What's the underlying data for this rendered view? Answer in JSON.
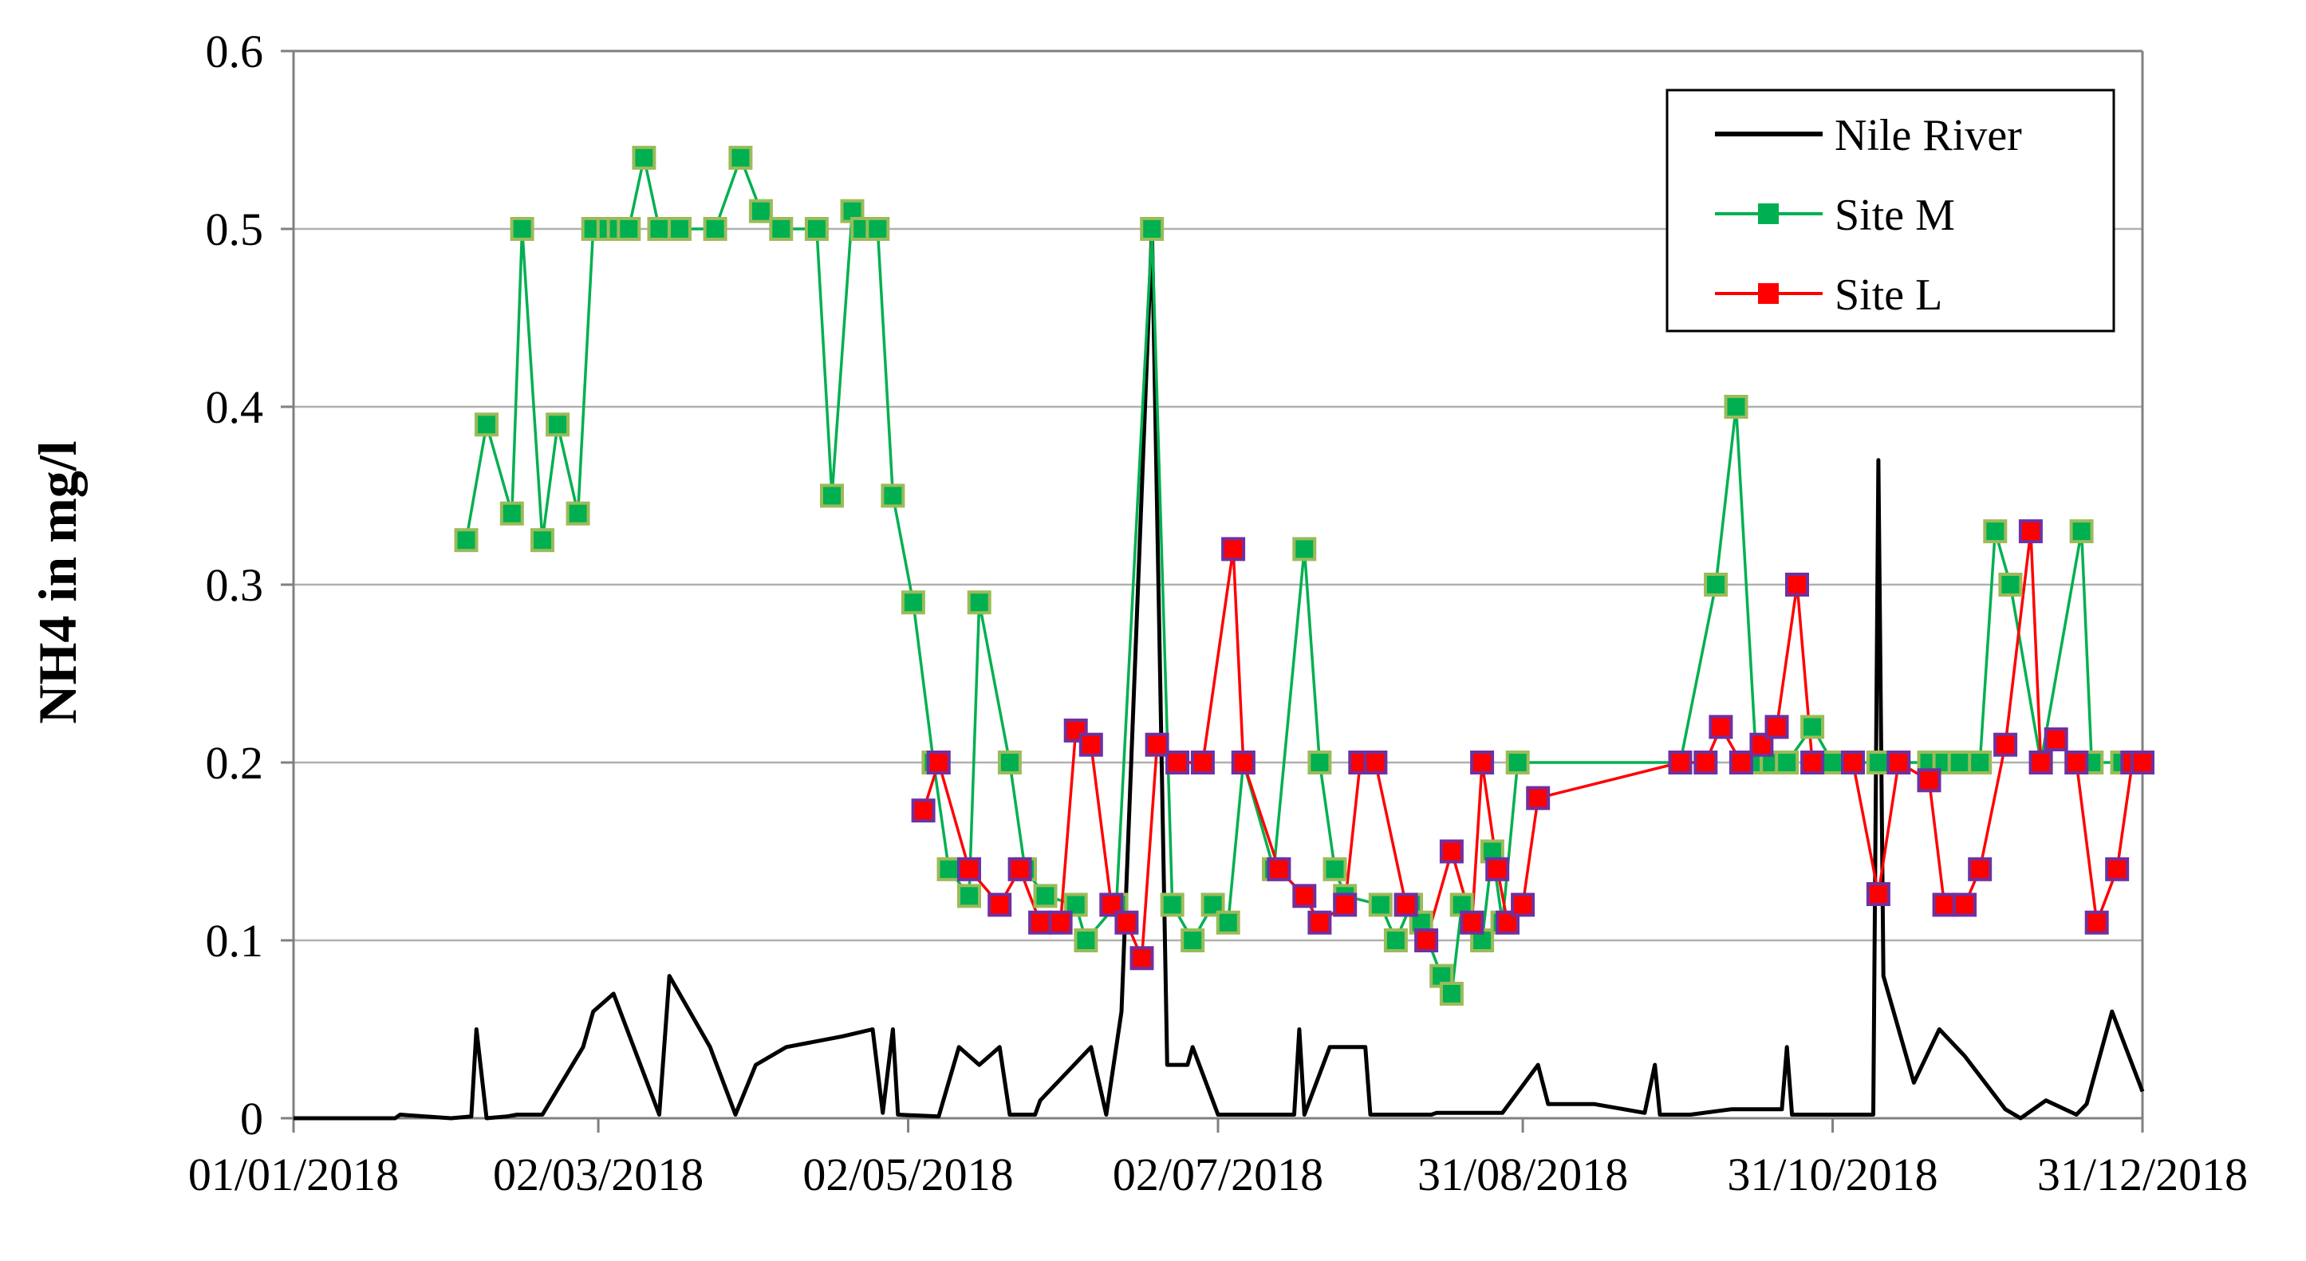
{
  "chart_data": {
    "type": "line",
    "title": "",
    "xlabel": "",
    "ylabel": "NH4  in  mg/l",
    "ylim": [
      0,
      0.6
    ],
    "yticks": [
      "0",
      "0.1",
      "0.2",
      "0.3",
      "0.4",
      "0.5",
      "0.6"
    ],
    "xlim": [
      "2018-01-01",
      "2018-12-31"
    ],
    "xtick_dates": [
      "2018-01-01",
      "2018-03-02",
      "2018-05-02",
      "2018-07-02",
      "2018-08-31",
      "2018-10-31",
      "2018-12-31"
    ],
    "xticks": [
      "01/01/2018",
      "02/03/2018",
      "02/05/2018",
      "02/07/2018",
      "31/08/2018",
      "31/10/2018",
      "31/12/2018"
    ],
    "grid": "horizontal",
    "legend_position": "top-right",
    "series": [
      {
        "name": "Nile River",
        "color": "#000000",
        "marker": "none",
        "points": [
          [
            "2018-01-01",
            0
          ],
          [
            "2018-01-21",
            0
          ],
          [
            "2018-01-22",
            0.002
          ],
          [
            "2018-02-01",
            0
          ],
          [
            "2018-02-05",
            0.001
          ],
          [
            "2018-02-06",
            0.05
          ],
          [
            "2018-02-08",
            0
          ],
          [
            "2018-02-12",
            0.001
          ],
          [
            "2018-02-14",
            0.002
          ],
          [
            "2018-02-19",
            0.002
          ],
          [
            "2018-02-27",
            0.04
          ],
          [
            "2018-03-01",
            0.06
          ],
          [
            "2018-03-05",
            0.07
          ],
          [
            "2018-03-14",
            0.002
          ],
          [
            "2018-03-16",
            0.08
          ],
          [
            "2018-03-24",
            0.04
          ],
          [
            "2018-03-29",
            0.002
          ],
          [
            "2018-04-02",
            0.03
          ],
          [
            "2018-04-08",
            0.04
          ],
          [
            "2018-04-19",
            0.046
          ],
          [
            "2018-04-25",
            0.05
          ],
          [
            "2018-04-27",
            0.003
          ],
          [
            "2018-04-29",
            0.05
          ],
          [
            "2018-04-30",
            0.002
          ],
          [
            "2018-05-08",
            0.001
          ],
          [
            "2018-05-12",
            0.04
          ],
          [
            "2018-05-16",
            0.03
          ],
          [
            "2018-05-20",
            0.04
          ],
          [
            "2018-05-22",
            0.002
          ],
          [
            "2018-05-27",
            0.002
          ],
          [
            "2018-05-28",
            0.01
          ],
          [
            "2018-06-07",
            0.04
          ],
          [
            "2018-06-10",
            0.002
          ],
          [
            "2018-06-13",
            0.06
          ],
          [
            "2018-06-19",
            0.5
          ],
          [
            "2018-06-22",
            0.03
          ],
          [
            "2018-06-26",
            0.03
          ],
          [
            "2018-06-27",
            0.04
          ],
          [
            "2018-07-02",
            0.002
          ],
          [
            "2018-07-17",
            0.002
          ],
          [
            "2018-07-18",
            0.05
          ],
          [
            "2018-07-19",
            0.002
          ],
          [
            "2018-07-24",
            0.04
          ],
          [
            "2018-07-31",
            0.04
          ],
          [
            "2018-08-01",
            0.002
          ],
          [
            "2018-08-13",
            0.002
          ],
          [
            "2018-08-14",
            0.003
          ],
          [
            "2018-08-27",
            0.003
          ],
          [
            "2018-09-03",
            0.03
          ],
          [
            "2018-09-05",
            0.008
          ],
          [
            "2018-09-14",
            0.008
          ],
          [
            "2018-09-24",
            0.003
          ],
          [
            "2018-09-26",
            0.03
          ],
          [
            "2018-09-27",
            0.002
          ],
          [
            "2018-10-03",
            0.002
          ],
          [
            "2018-10-11",
            0.005
          ],
          [
            "2018-10-21",
            0.005
          ],
          [
            "2018-10-22",
            0.04
          ],
          [
            "2018-10-23",
            0.002
          ],
          [
            "2018-11-08",
            0.002
          ],
          [
            "2018-11-09",
            0.37
          ],
          [
            "2018-11-10",
            0.08
          ],
          [
            "2018-11-16",
            0.02
          ],
          [
            "2018-11-21",
            0.05
          ],
          [
            "2018-11-26",
            0.035
          ],
          [
            "2018-12-04",
            0.005
          ],
          [
            "2018-12-07",
            0
          ],
          [
            "2018-12-12",
            0.01
          ],
          [
            "2018-12-18",
            0.002
          ],
          [
            "2018-12-20",
            0.008
          ],
          [
            "2018-12-25",
            0.06
          ],
          [
            "2018-12-31",
            0.015
          ]
        ]
      },
      {
        "name": "Site M",
        "color": "#00b050",
        "marker": "square",
        "points": [
          [
            "2018-02-04",
            0.325
          ],
          [
            "2018-02-08",
            0.39
          ],
          [
            "2018-02-13",
            0.34
          ],
          [
            "2018-02-15",
            0.5
          ],
          [
            "2018-02-19",
            0.325
          ],
          [
            "2018-02-22",
            0.39
          ],
          [
            "2018-02-26",
            0.34
          ],
          [
            "2018-03-01",
            0.5
          ],
          [
            "2018-03-04",
            0.5
          ],
          [
            "2018-03-06",
            0.5
          ],
          [
            "2018-03-08",
            0.5
          ],
          [
            "2018-03-11",
            0.54
          ],
          [
            "2018-03-14",
            0.5
          ],
          [
            "2018-03-18",
            0.5
          ],
          [
            "2018-03-25",
            0.5
          ],
          [
            "2018-03-30",
            0.54
          ],
          [
            "2018-04-03",
            0.51
          ],
          [
            "2018-04-07",
            0.5
          ],
          [
            "2018-04-14",
            0.5
          ],
          [
            "2018-04-17",
            0.35
          ],
          [
            "2018-04-21",
            0.51
          ],
          [
            "2018-04-23",
            0.5
          ],
          [
            "2018-04-26",
            0.5
          ],
          [
            "2018-04-29",
            0.35
          ],
          [
            "2018-05-03",
            0.29
          ],
          [
            "2018-05-07",
            0.2
          ],
          [
            "2018-05-10",
            0.14
          ],
          [
            "2018-05-14",
            0.125
          ],
          [
            "2018-05-16",
            0.29
          ],
          [
            "2018-05-22",
            0.2
          ],
          [
            "2018-05-25",
            0.14
          ],
          [
            "2018-05-29",
            0.125
          ],
          [
            "2018-06-04",
            0.12
          ],
          [
            "2018-06-06",
            0.1
          ],
          [
            "2018-06-12",
            0.12
          ],
          [
            "2018-06-19",
            0.5
          ],
          [
            "2018-06-23",
            0.12
          ],
          [
            "2018-06-27",
            0.1
          ],
          [
            "2018-07-01",
            0.12
          ],
          [
            "2018-07-04",
            0.11
          ],
          [
            "2018-07-07",
            0.2
          ],
          [
            "2018-07-13",
            0.14
          ],
          [
            "2018-07-19",
            0.32
          ],
          [
            "2018-07-22",
            0.2
          ],
          [
            "2018-07-25",
            0.14
          ],
          [
            "2018-07-27",
            0.125
          ],
          [
            "2018-08-03",
            0.12
          ],
          [
            "2018-08-06",
            0.1
          ],
          [
            "2018-08-09",
            0.12
          ],
          [
            "2018-08-11",
            0.11
          ],
          [
            "2018-08-15",
            0.08
          ],
          [
            "2018-08-17",
            0.07
          ],
          [
            "2018-08-19",
            0.12
          ],
          [
            "2018-08-23",
            0.1
          ],
          [
            "2018-08-25",
            0.15
          ],
          [
            "2018-08-27",
            0.11
          ],
          [
            "2018-08-30",
            0.2
          ],
          [
            "2018-10-01",
            0.2
          ],
          [
            "2018-10-08",
            0.3
          ],
          [
            "2018-10-12",
            0.4
          ],
          [
            "2018-10-16",
            0.2
          ],
          [
            "2018-10-19",
            0.2
          ],
          [
            "2018-10-22",
            0.2
          ],
          [
            "2018-10-27",
            0.22
          ],
          [
            "2018-10-31",
            0.2
          ],
          [
            "2018-11-09",
            0.2
          ],
          [
            "2018-11-19",
            0.2
          ],
          [
            "2018-11-22",
            0.2
          ],
          [
            "2018-11-25",
            0.2
          ],
          [
            "2018-11-29",
            0.2
          ],
          [
            "2018-12-02",
            0.33
          ],
          [
            "2018-12-05",
            0.3
          ],
          [
            "2018-12-11",
            0.2
          ],
          [
            "2018-12-19",
            0.33
          ],
          [
            "2018-12-21",
            0.2
          ],
          [
            "2018-12-27",
            0.2
          ],
          [
            "2018-12-30",
            0.2
          ]
        ]
      },
      {
        "name": "Site L",
        "color": "#ff0000",
        "marker": "square",
        "points": [
          [
            "2018-05-05",
            0.173
          ],
          [
            "2018-05-08",
            0.2
          ],
          [
            "2018-05-14",
            0.14
          ],
          [
            "2018-05-20",
            0.12
          ],
          [
            "2018-05-24",
            0.14
          ],
          [
            "2018-05-28",
            0.11
          ],
          [
            "2018-06-01",
            0.11
          ],
          [
            "2018-06-04",
            0.218
          ],
          [
            "2018-06-07",
            0.21
          ],
          [
            "2018-06-11",
            0.12
          ],
          [
            "2018-06-14",
            0.11
          ],
          [
            "2018-06-17",
            0.09
          ],
          [
            "2018-06-20",
            0.21
          ],
          [
            "2018-06-24",
            0.2
          ],
          [
            "2018-06-29",
            0.2
          ],
          [
            "2018-07-05",
            0.32
          ],
          [
            "2018-07-07",
            0.2
          ],
          [
            "2018-07-14",
            0.14
          ],
          [
            "2018-07-19",
            0.125
          ],
          [
            "2018-07-22",
            0.11
          ],
          [
            "2018-07-27",
            0.12
          ],
          [
            "2018-07-30",
            0.2
          ],
          [
            "2018-08-02",
            0.2
          ],
          [
            "2018-08-08",
            0.12
          ],
          [
            "2018-08-12",
            0.1
          ],
          [
            "2018-08-17",
            0.15
          ],
          [
            "2018-08-21",
            0.11
          ],
          [
            "2018-08-23",
            0.2
          ],
          [
            "2018-08-26",
            0.14
          ],
          [
            "2018-08-28",
            0.11
          ],
          [
            "2018-08-31",
            0.12
          ],
          [
            "2018-09-03",
            0.18
          ],
          [
            "2018-10-01",
            0.2
          ],
          [
            "2018-10-06",
            0.2
          ],
          [
            "2018-10-09",
            0.22
          ],
          [
            "2018-10-13",
            0.2
          ],
          [
            "2018-10-17",
            0.21
          ],
          [
            "2018-10-20",
            0.22
          ],
          [
            "2018-10-24",
            0.3
          ],
          [
            "2018-10-27",
            0.2
          ],
          [
            "2018-11-04",
            0.2
          ],
          [
            "2018-11-09",
            0.126
          ],
          [
            "2018-11-13",
            0.2
          ],
          [
            "2018-11-19",
            0.19
          ],
          [
            "2018-11-22",
            0.12
          ],
          [
            "2018-11-26",
            0.12
          ],
          [
            "2018-11-29",
            0.14
          ],
          [
            "2018-12-04",
            0.21
          ],
          [
            "2018-12-09",
            0.33
          ],
          [
            "2018-12-11",
            0.2
          ],
          [
            "2018-12-14",
            0.213
          ],
          [
            "2018-12-18",
            0.2
          ],
          [
            "2018-12-22",
            0.11
          ],
          [
            "2018-12-26",
            0.14
          ],
          [
            "2018-12-29",
            0.2
          ],
          [
            "2018-12-31",
            0.2
          ]
        ]
      }
    ]
  },
  "style": {
    "marker_outline_site_m": "#9bbb59",
    "marker_outline_site_l": "#7030a0",
    "grid_color": "#b0b0b0",
    "axis_color": "#808080"
  }
}
